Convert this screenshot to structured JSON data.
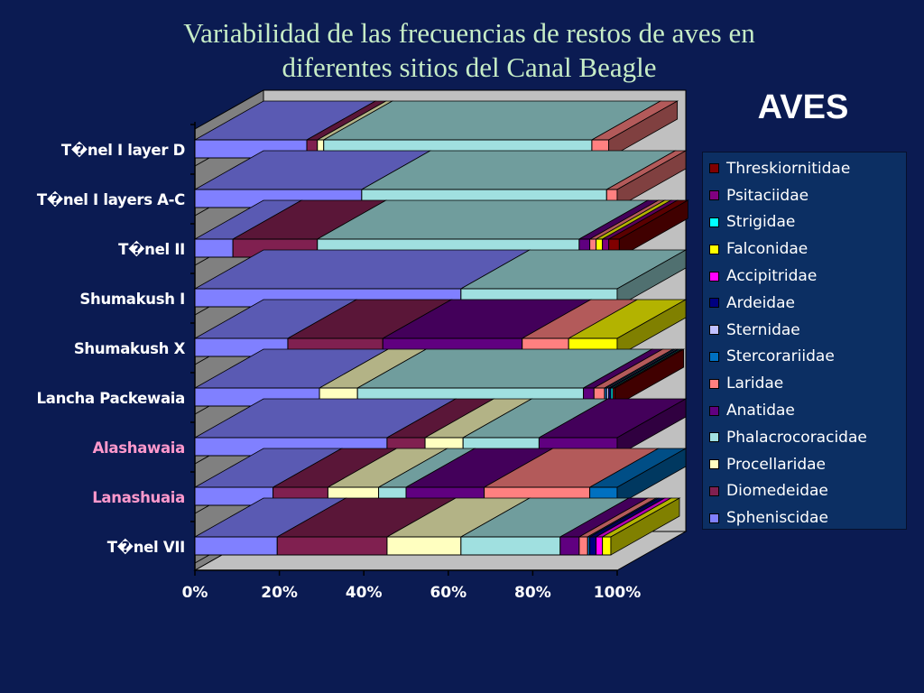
{
  "title_line1": "Variabilidad de las frecuencias de restos de aves en",
  "title_line2": "diferentes sitios del Canal Beagle",
  "chart_data": {
    "type": "bar",
    "stacked": "percent",
    "orientation": "horizontal",
    "title": "Variabilidad de las frecuencias de restos de aves en diferentes sitios del Canal Beagle",
    "legend_title": "AVES",
    "legend_position": "right",
    "xlim": [
      0,
      100
    ],
    "xticks": [
      "0%",
      "20%",
      "40%",
      "60%",
      "80%",
      "100%"
    ],
    "categories": [
      "T�nel I layer D",
      "T�nel I layers A-C",
      "T�nel II",
      "Shumakush I",
      "Shumakush X",
      "Lancha Packewaia",
      "Alashawaia",
      "Lanashuaia",
      "T�nel VII"
    ],
    "category_colors": [
      "#ffffff",
      "#ffffff",
      "#ffffff",
      "#ffffff",
      "#ffffff",
      "#ffffff",
      "#ff99cc",
      "#ff99cc",
      "#ffffff"
    ],
    "series": [
      {
        "name": "Spheniscidae",
        "color": "#8080ff",
        "values": [
          26.5,
          39.5,
          9,
          63,
          22,
          29.5,
          45.5,
          18.5,
          19.5
        ]
      },
      {
        "name": "Diomedeidae",
        "color": "#802050",
        "values": [
          2.5,
          0,
          20,
          0,
          22.5,
          0,
          9,
          13,
          26
        ]
      },
      {
        "name": "Procellaridae",
        "color": "#ffffc0",
        "values": [
          1.5,
          0,
          0,
          0,
          0,
          9,
          9,
          12,
          17.5
        ]
      },
      {
        "name": "Phalacrocoracidae",
        "color": "#a0e0e0",
        "values": [
          63.5,
          58,
          62,
          37,
          0,
          53.5,
          18,
          6.5,
          23.5
        ]
      },
      {
        "name": "Anatidae",
        "color": "#600080",
        "values": [
          0,
          0,
          2.5,
          0,
          33,
          2.5,
          18.5,
          18.5,
          4.5
        ]
      },
      {
        "name": "Laridae",
        "color": "#ff8080",
        "values": [
          4,
          2.5,
          1.5,
          0,
          11,
          2.5,
          0,
          25,
          2
        ]
      },
      {
        "name": "Stercorariidae",
        "color": "#0070c0",
        "values": [
          0,
          0,
          0,
          0,
          0,
          0.5,
          0,
          6.5,
          0.5
        ]
      },
      {
        "name": "Sternidae",
        "color": "#c0c0ff",
        "values": [
          0,
          0,
          0,
          0,
          0,
          0.5,
          0,
          0,
          0
        ]
      },
      {
        "name": "Ardeidae",
        "color": "#000080",
        "values": [
          0,
          0,
          0,
          0,
          0,
          0.5,
          0,
          0,
          1.5
        ]
      },
      {
        "name": "Accipitridae",
        "color": "#ff00ff",
        "values": [
          0,
          0,
          0,
          0,
          0,
          0,
          0,
          0,
          1.5
        ]
      },
      {
        "name": "Falconidae",
        "color": "#ffff00",
        "values": [
          0,
          0,
          1.5,
          0,
          11.5,
          0,
          0,
          0,
          2
        ]
      },
      {
        "name": "Strigidae",
        "color": "#00ffff",
        "values": [
          0,
          0,
          0,
          0,
          0,
          0.5,
          0,
          0,
          0
        ]
      },
      {
        "name": "Psitaciidae",
        "color": "#800080",
        "values": [
          0,
          0,
          1.5,
          0,
          0,
          0,
          0,
          0,
          0
        ]
      },
      {
        "name": "Threskiornitidae",
        "color": "#800000",
        "values": [
          0,
          0,
          2.5,
          0,
          0,
          0.5,
          0,
          0,
          0
        ]
      }
    ]
  }
}
